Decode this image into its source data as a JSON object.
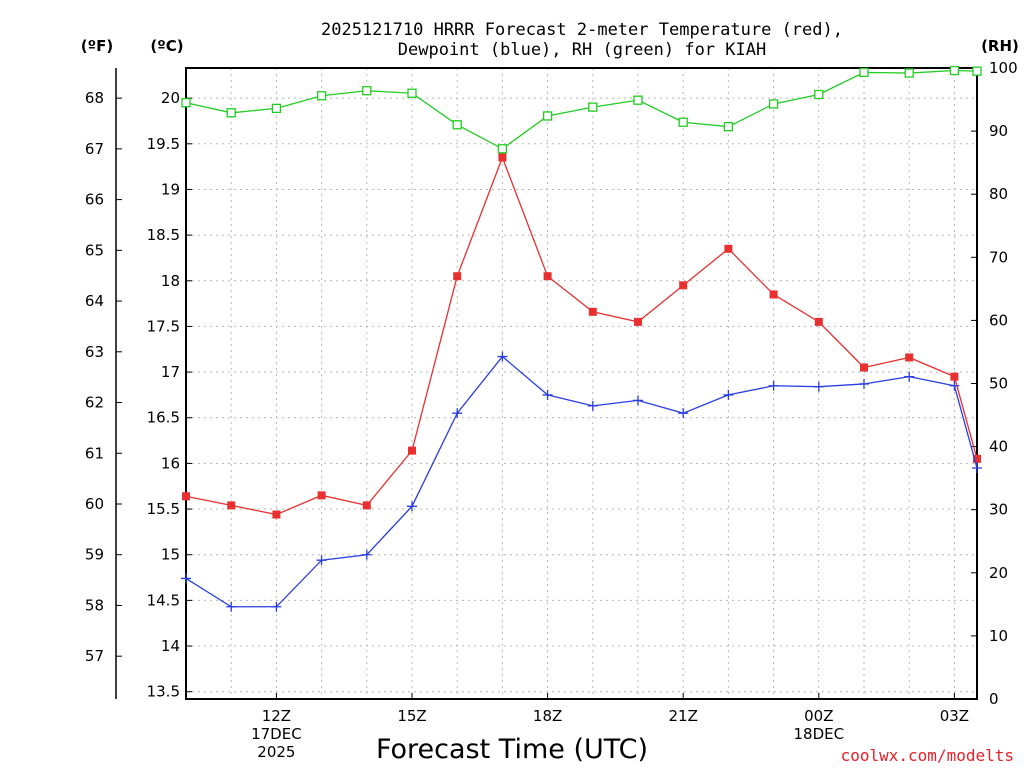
{
  "chart_data": {
    "type": "line",
    "title_lines": [
      "2025121710 HRRR Forecast 2-meter Temperature (red),",
      "Dewpoint (blue), RH (green) for KIAH"
    ],
    "xlabel": "Forecast Time (UTC)",
    "left_outer_unit": "(ºF)",
    "left_inner_unit": "(ºC)",
    "right_unit": "(RH)",
    "credit": "coolwx.com/modelts",
    "x_hours": [
      10,
      11,
      12,
      13,
      14,
      15,
      16,
      17,
      18,
      19,
      20,
      21,
      22,
      23,
      24,
      25,
      26,
      27,
      27.5
    ],
    "xlim": [
      10,
      27.5
    ],
    "x_ticks": [
      {
        "hour": 12,
        "lines": [
          "12Z",
          "17DEC",
          "2025"
        ]
      },
      {
        "hour": 15,
        "lines": [
          "15Z"
        ]
      },
      {
        "hour": 18,
        "lines": [
          "18Z"
        ]
      },
      {
        "hour": 21,
        "lines": [
          "21Z"
        ]
      },
      {
        "hour": 24,
        "lines": [
          "00Z",
          "18DEC"
        ]
      },
      {
        "hour": 27,
        "lines": [
          "03Z"
        ]
      }
    ],
    "celsius_axis": {
      "ylim": [
        13.42,
        20.33
      ],
      "ticks": [
        "13.5",
        "14",
        "14.5",
        "15",
        "15.5",
        "16",
        "16.5",
        "17",
        "17.5",
        "18",
        "18.5",
        "19",
        "19.5",
        "20"
      ]
    },
    "fahrenheit_ticks": [
      "57",
      "58",
      "59",
      "60",
      "61",
      "62",
      "63",
      "64",
      "65",
      "66",
      "67",
      "68"
    ],
    "rh_axis": {
      "ylim": [
        0,
        100
      ],
      "ticks": [
        "0",
        "10",
        "20",
        "30",
        "40",
        "50",
        "60",
        "70",
        "80",
        "90",
        "100"
      ]
    },
    "series": [
      {
        "name": "Temperature",
        "unit": "C",
        "color": "#e83030",
        "marker": "filled-square",
        "values": [
          15.64,
          15.54,
          15.44,
          15.65,
          15.54,
          16.14,
          18.05,
          19.35,
          18.05,
          17.66,
          17.55,
          17.95,
          18.35,
          17.85,
          17.55,
          17.05,
          17.16,
          16.95,
          16.05
        ]
      },
      {
        "name": "Dewpoint",
        "unit": "C",
        "color": "#2a3ee0",
        "marker": "plus",
        "values": [
          14.74,
          14.43,
          14.43,
          14.94,
          15.0,
          15.53,
          16.55,
          17.17,
          16.75,
          16.63,
          16.69,
          16.55,
          16.75,
          16.85,
          16.84,
          16.87,
          16.95,
          16.85,
          15.95
        ]
      },
      {
        "name": "RH",
        "unit": "%",
        "color": "#22cc22",
        "marker": "open-square",
        "values": [
          94.5,
          92.9,
          93.6,
          95.6,
          96.4,
          96.0,
          91.0,
          87.2,
          92.4,
          93.8,
          94.9,
          91.4,
          90.7,
          94.3,
          95.8,
          99.3,
          99.2,
          99.6,
          99.5
        ]
      }
    ]
  }
}
